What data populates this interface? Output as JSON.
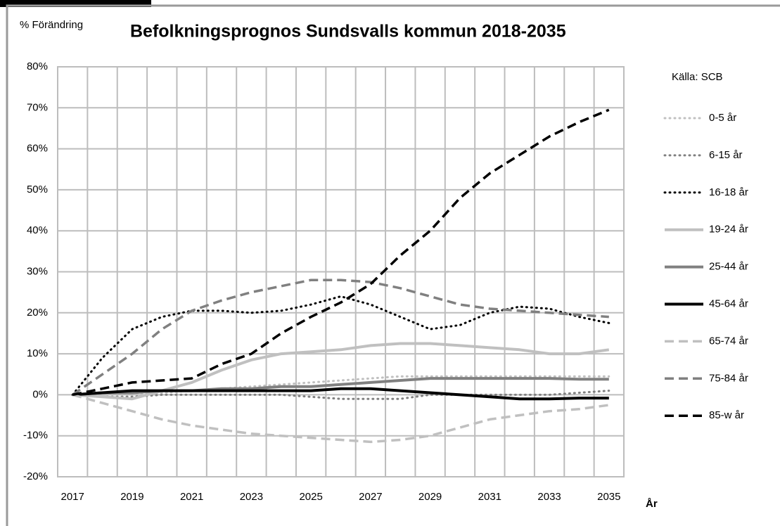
{
  "chart_data": {
    "type": "line",
    "title": "Befolkningsprognos Sundsvalls kommun 2018-2035",
    "y_label": "% Förändring",
    "x_label": "År",
    "source": "Källa: SCB",
    "categories": [
      "2017",
      null,
      "2019",
      null,
      "2021",
      null,
      "2023",
      null,
      "2025",
      null,
      "2027",
      null,
      "2029",
      null,
      "2031",
      null,
      "2033",
      null,
      "2035"
    ],
    "ylim": [
      -20,
      80
    ],
    "yticks": [
      {
        "value": -20,
        "label": "-20%"
      },
      {
        "value": -10,
        "label": "-10%"
      },
      {
        "value": 0,
        "label": "0%"
      },
      {
        "value": 10,
        "label": "10%"
      },
      {
        "value": 20,
        "label": "20%"
      },
      {
        "value": 30,
        "label": "30%"
      },
      {
        "value": 40,
        "label": "40%"
      },
      {
        "value": 50,
        "label": "50%"
      },
      {
        "value": 60,
        "label": "60%"
      },
      {
        "value": 70,
        "label": "70%"
      },
      {
        "value": 80,
        "label": "80%"
      }
    ],
    "grid": true,
    "legend": "right",
    "series": [
      {
        "name": "0-5 år",
        "color": "#c0c0c0",
        "dash": "dotted",
        "values": [
          0,
          0,
          0,
          0.5,
          1,
          1.5,
          2,
          2.5,
          3,
          3.5,
          4,
          4.5,
          4.5,
          4.5,
          4.5,
          4.5,
          4.5,
          4.5,
          4.5
        ]
      },
      {
        "name": "6-15 år",
        "color": "#808080",
        "dash": "dotted",
        "values": [
          0,
          -0.5,
          -0.5,
          0,
          0,
          0,
          0,
          0,
          -0.5,
          -1,
          -1,
          -1,
          0,
          0,
          0,
          0,
          0,
          0.5,
          1
        ]
      },
      {
        "name": "16-18 år",
        "color": "#000000",
        "dash": "dotted",
        "values": [
          0,
          9,
          16,
          19,
          20.5,
          20.5,
          20,
          20.5,
          22,
          24,
          22,
          19,
          16,
          17,
          20,
          21.5,
          21,
          19,
          17.5
        ]
      },
      {
        "name": "19-24 år",
        "color": "#c0c0c0",
        "dash": "solid",
        "values": [
          0,
          -0.5,
          -1,
          1,
          3,
          6,
          8.5,
          10,
          10.5,
          11,
          12,
          12.5,
          12.5,
          12,
          11.5,
          11,
          10,
          10,
          11
        ]
      },
      {
        "name": "25-44 år",
        "color": "#808080",
        "dash": "solid",
        "values": [
          0,
          0.5,
          0.5,
          1,
          1,
          1.5,
          1.5,
          2,
          2,
          2.5,
          3,
          3.5,
          4,
          4,
          4,
          4,
          4,
          3.8,
          3.8
        ]
      },
      {
        "name": "45-64 år",
        "color": "#000000",
        "dash": "solid",
        "values": [
          0,
          0.5,
          1,
          1,
          1,
          1,
          1,
          1,
          1,
          1.5,
          1.5,
          1,
          0.5,
          0,
          -0.5,
          -1,
          -1,
          -0.8,
          -0.8
        ]
      },
      {
        "name": "65-74 år",
        "color": "#c0c0c0",
        "dash": "dashed",
        "values": [
          0,
          -2,
          -4,
          -6,
          -7.5,
          -8.5,
          -9.5,
          -10,
          -10.5,
          -11,
          -11.5,
          -11,
          -10,
          -8,
          -6,
          -5,
          -4,
          -3.5,
          -2.5
        ]
      },
      {
        "name": "75-84 år",
        "color": "#808080",
        "dash": "dashed",
        "values": [
          0,
          5,
          10,
          16,
          20.5,
          23,
          25,
          26.5,
          28,
          28,
          27.5,
          26,
          24,
          22,
          21,
          20.5,
          20,
          19.5,
          19
        ]
      },
      {
        "name": "85-w år",
        "color": "#000000",
        "dash": "dashed",
        "values": [
          0,
          1.5,
          3,
          3.5,
          4,
          7.5,
          10,
          15,
          19,
          22.5,
          27,
          34,
          40,
          48,
          54,
          58.5,
          63,
          66.5,
          69.5
        ]
      }
    ]
  }
}
